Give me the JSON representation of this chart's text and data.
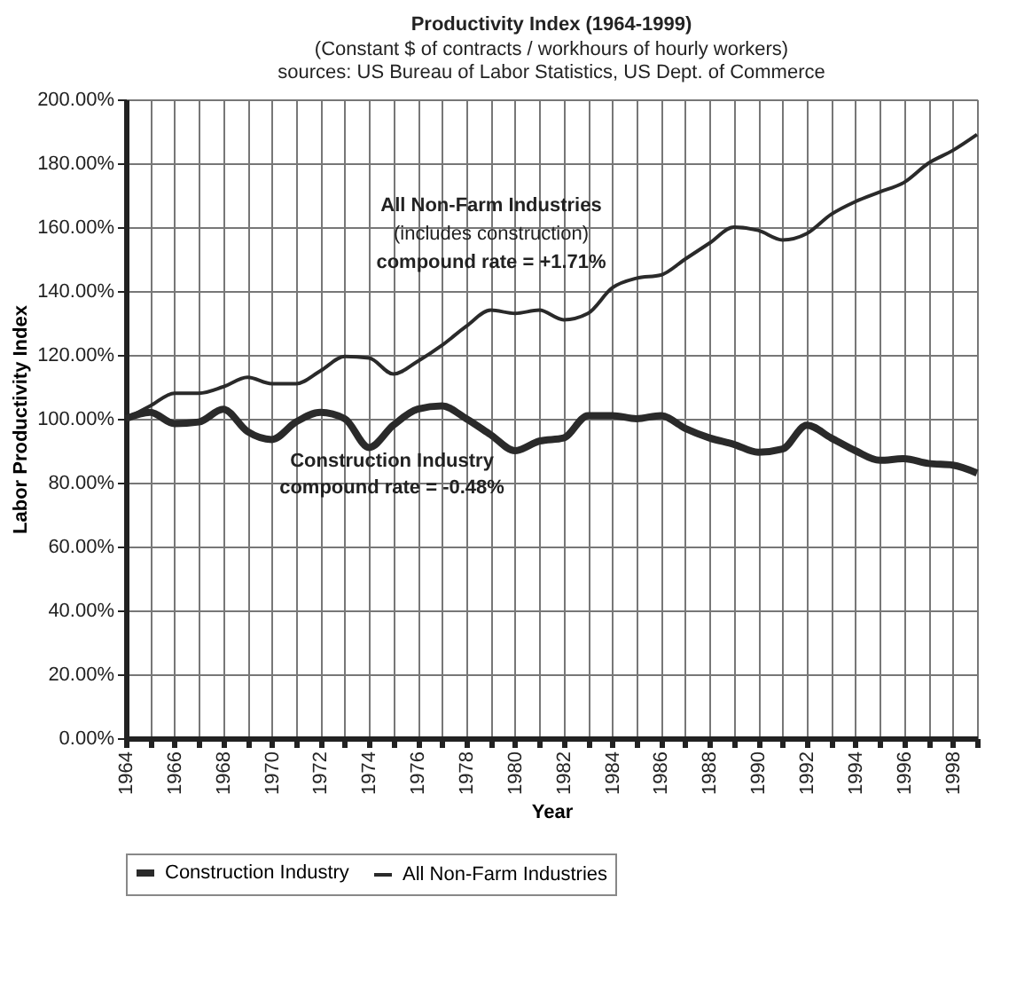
{
  "chart_data": {
    "type": "line",
    "title": "Productivity Index (1964-1999)",
    "subtitle": "(Constant $ of contracts / workhours of hourly workers)",
    "xlabel": "Year",
    "ylabel": "Labor Productivity Index",
    "x": [
      1964,
      1965,
      1966,
      1967,
      1968,
      1969,
      1970,
      1971,
      1972,
      1973,
      1974,
      1975,
      1976,
      1977,
      1978,
      1979,
      1980,
      1981,
      1982,
      1983,
      1984,
      1985,
      1986,
      1987,
      1988,
      1989,
      1990,
      1991,
      1992,
      1993,
      1994,
      1995,
      1996,
      1997,
      1998,
      1999
    ],
    "series": [
      {
        "name": "Construction Industry",
        "color": "#2a2a2a",
        "values": [
          100,
          102,
          98.5,
          99,
          103,
          96,
          93.5,
          99,
          102,
          100,
          91,
          98,
          103,
          104,
          100,
          95,
          90,
          93,
          94,
          101,
          101,
          100,
          101,
          97,
          94,
          92,
          89.5,
          90.5,
          98,
          94,
          90,
          87,
          87.5,
          86,
          85.5,
          83
        ]
      },
      {
        "name": "All Non-Farm Industries",
        "color": "#2a2a2a",
        "values": [
          100,
          104,
          108,
          108,
          110,
          113,
          111,
          111,
          115,
          119.5,
          119,
          114,
          118,
          123,
          129,
          134,
          133,
          134,
          131,
          133,
          141,
          144,
          145,
          150,
          155,
          160,
          159,
          156,
          158,
          164,
          168,
          171,
          174,
          180,
          184,
          189
        ]
      }
    ],
    "xlim": [
      1964,
      1999
    ],
    "xticks": [
      1964,
      {
        "value": 1965,
        "label": null
      },
      1966,
      {
        "value": 1967,
        "label": null
      },
      1968,
      {
        "value": 1969,
        "label": null
      },
      1970,
      {
        "value": 1971,
        "label": null
      },
      1972,
      {
        "value": 1973,
        "label": null
      },
      1974,
      {
        "value": 1975,
        "label": null
      },
      1976,
      {
        "value": 1977,
        "label": null
      },
      1978,
      {
        "value": 1979,
        "label": null
      },
      1980,
      {
        "value": 1981,
        "label": null
      },
      1982,
      {
        "value": 1983,
        "label": null
      },
      1984,
      {
        "value": 1985,
        "label": null
      },
      1986,
      {
        "value": 1987,
        "label": null
      },
      1988,
      {
        "value": 1989,
        "label": null
      },
      1990,
      {
        "value": 1991,
        "label": null
      },
      1992,
      {
        "value": 1993,
        "label": null
      },
      1994,
      {
        "value": 1995,
        "label": null
      },
      1996,
      {
        "value": 1997,
        "label": null
      },
      1998,
      {
        "value": 1999,
        "label": null
      }
    ],
    "ylim": [
      0,
      200
    ],
    "yticks": [
      {
        "value": 0,
        "label": "0.00%"
      },
      {
        "value": 20,
        "label": "20.00%"
      },
      {
        "value": 40,
        "label": "40.00%"
      },
      {
        "value": 60,
        "label": "60.00%"
      },
      {
        "value": 80,
        "label": "80.00%"
      },
      {
        "value": 100,
        "label": "100.00%"
      },
      {
        "value": 120,
        "label": "120.00%"
      },
      {
        "value": 140,
        "label": "140.00%"
      },
      {
        "value": 160,
        "label": "160.00%"
      },
      {
        "value": 180,
        "label": "180.00%"
      },
      {
        "value": 200,
        "label": "200.00%"
      }
    ],
    "annotations": [
      "sources: US Bureau of Labor Statistics, US Dept. of Commerce",
      "All Non-Farm Industries",
      "(includes construction)",
      "compound rate = +1.71%",
      "Construction Industry",
      "compound rate = -0.48%"
    ],
    "grid": true,
    "legend": "bottom",
    "marker": "none",
    "line_style": "solid"
  }
}
